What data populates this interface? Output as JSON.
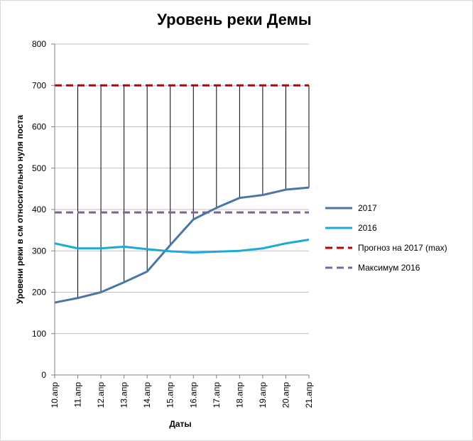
{
  "chart_data": {
    "type": "line",
    "title": "Уровень реки Демы",
    "xlabel": "Даты",
    "ylabel": "Уровени реки в см относительно нуля поста",
    "categories": [
      "10.апр",
      "11.апр",
      "12.апр",
      "13.апр",
      "14.апр",
      "15.апр",
      "16.апр",
      "17.апр",
      "18.апр",
      "19.апр",
      "20.апр",
      "21.апр"
    ],
    "ylim": [
      0,
      800
    ],
    "yticks": [
      0,
      100,
      200,
      300,
      400,
      500,
      600,
      700,
      800
    ],
    "grid": true,
    "legend_position": "right",
    "series": [
      {
        "name": "2017",
        "style": "solid",
        "color": "#4a76a8",
        "values": [
          175,
          186,
          200,
          224,
          250,
          314,
          376,
          404,
          428,
          435,
          448,
          453
        ]
      },
      {
        "name": "2016",
        "style": "solid",
        "color": "#1fa9d8",
        "values": [
          318,
          306,
          306,
          310,
          304,
          299,
          296,
          298,
          300,
          306,
          318,
          327
        ]
      },
      {
        "name": "Прогноз на 2017 (max)",
        "style": "dashed",
        "color": "#c00000",
        "values": [
          700,
          700,
          700,
          700,
          700,
          700,
          700,
          700,
          700,
          700,
          700,
          700
        ]
      },
      {
        "name": "Максимум 2016",
        "style": "dashed",
        "color": "#7f659c",
        "values": [
          393,
          393,
          393,
          393,
          393,
          393,
          393,
          393,
          393,
          393,
          393,
          393
        ]
      }
    ],
    "drop_lines": {
      "from_series": "Прогноз на 2017 (max)",
      "to_series": "2017",
      "color": "#000000"
    }
  }
}
